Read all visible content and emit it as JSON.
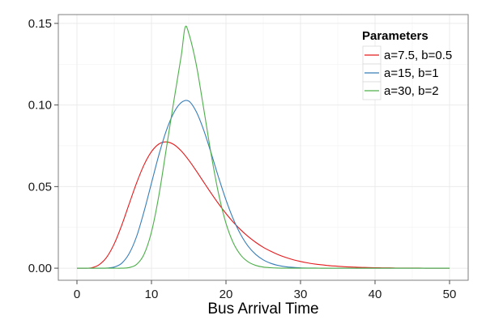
{
  "chart_data": {
    "type": "line",
    "xlabel": "Bus Arrival Time",
    "ylabel": "",
    "xlim": [
      -2.5,
      52.5
    ],
    "ylim": [
      -0.0074,
      0.1554
    ],
    "x_ticks": [
      0,
      10,
      20,
      30,
      40,
      50
    ],
    "x_tick_labels": [
      "0",
      "10",
      "20",
      "30",
      "40",
      "50"
    ],
    "y_ticks": [
      0.0,
      0.05,
      0.1,
      0.15
    ],
    "y_tick_labels": [
      "0.00",
      "0.05",
      "0.10",
      "0.15"
    ],
    "grid": true,
    "legend": {
      "title": "Parameters",
      "position": "top-right"
    },
    "series": [
      {
        "name": "a=7.5, b=0.5",
        "color": "#e41a1c",
        "x": [
          0,
          1,
          2,
          3,
          4,
          5,
          6,
          7,
          8,
          9,
          10,
          11,
          12,
          13,
          14,
          15,
          16,
          17,
          18,
          19,
          20,
          21,
          22,
          23,
          24,
          25,
          26,
          27,
          28,
          29,
          30,
          31,
          32,
          33,
          34,
          35,
          36,
          37,
          38,
          39,
          40,
          41,
          42,
          43,
          44,
          45,
          46,
          47,
          48,
          49,
          50
        ],
        "values": [
          0.0,
          0.0,
          0.0003,
          0.0022,
          0.0068,
          0.0149,
          0.0262,
          0.0393,
          0.0522,
          0.0633,
          0.0714,
          0.0761,
          0.0774,
          0.0758,
          0.0718,
          0.0662,
          0.0597,
          0.0528,
          0.046,
          0.0395,
          0.0335,
          0.0281,
          0.0234,
          0.0193,
          0.0158,
          0.0128,
          0.0104,
          0.0083,
          0.0066,
          0.0052,
          0.0041,
          0.0032,
          0.0025,
          0.002,
          0.0015,
          0.0012,
          0.0009,
          0.0007,
          0.0005,
          0.0004,
          0.0003,
          0.0002,
          0.0002,
          0.0001,
          0.0001,
          0.0001,
          0.0001,
          0.0,
          0.0,
          0.0,
          0.0
        ]
      },
      {
        "name": "a=15, b=1",
        "color": "#377eb8",
        "x": [
          0,
          1,
          2,
          3,
          4,
          5,
          6,
          7,
          8,
          9,
          10,
          11,
          12,
          13,
          14,
          15,
          16,
          17,
          18,
          19,
          20,
          21,
          22,
          23,
          24,
          25,
          26,
          27,
          28,
          29,
          30,
          31,
          32,
          33,
          34,
          35,
          36,
          37,
          38,
          39,
          40,
          41,
          42,
          43,
          44,
          45,
          46,
          47,
          48,
          49,
          50
        ],
        "values": [
          0.0,
          0.0,
          0.0,
          0.0,
          0.0001,
          0.0007,
          0.003,
          0.0089,
          0.0194,
          0.0347,
          0.0521,
          0.0695,
          0.0844,
          0.0953,
          0.1015,
          0.1024,
          0.096,
          0.0847,
          0.0706,
          0.0557,
          0.0418,
          0.0299,
          0.0204,
          0.0133,
          0.0084,
          0.0051,
          0.003,
          0.0017,
          0.0009,
          0.0005,
          0.0002,
          0.0001,
          0.0001,
          0.0,
          0.0,
          0.0,
          0.0,
          0.0,
          0.0,
          0.0,
          0.0,
          0.0,
          0.0,
          0.0,
          0.0,
          0.0,
          0.0,
          0.0,
          0.0,
          0.0,
          0.0
        ]
      },
      {
        "name": "a=30, b=2",
        "color": "#4daf4a",
        "x": [
          0,
          1,
          2,
          3,
          4,
          5,
          6,
          7,
          8,
          9,
          10,
          11,
          12,
          13,
          14,
          14.5,
          15,
          16,
          17,
          18,
          19,
          20,
          21,
          22,
          23,
          24,
          25,
          26,
          27,
          28,
          29,
          30,
          31,
          32,
          33,
          34,
          35,
          36,
          37,
          38,
          39,
          40,
          41,
          42,
          43,
          44,
          45,
          46,
          47,
          48,
          49,
          50
        ],
        "values": [
          0.0,
          0.0,
          0.0,
          0.0,
          0.0,
          0.0,
          0.0,
          0.0004,
          0.0023,
          0.0085,
          0.0222,
          0.0447,
          0.0735,
          0.1024,
          0.1303,
          0.1474,
          0.144,
          0.125,
          0.098,
          0.07,
          0.0457,
          0.0275,
          0.0153,
          0.0079,
          0.0038,
          0.0017,
          0.0007,
          0.0003,
          0.0001,
          0.0,
          0.0,
          0.0,
          0.0,
          0.0,
          0.0,
          0.0,
          0.0,
          0.0,
          0.0,
          0.0,
          0.0,
          0.0,
          0.0,
          0.0,
          0.0,
          0.0,
          0.0,
          0.0,
          0.0,
          0.0,
          0.0,
          0.0
        ]
      }
    ]
  }
}
